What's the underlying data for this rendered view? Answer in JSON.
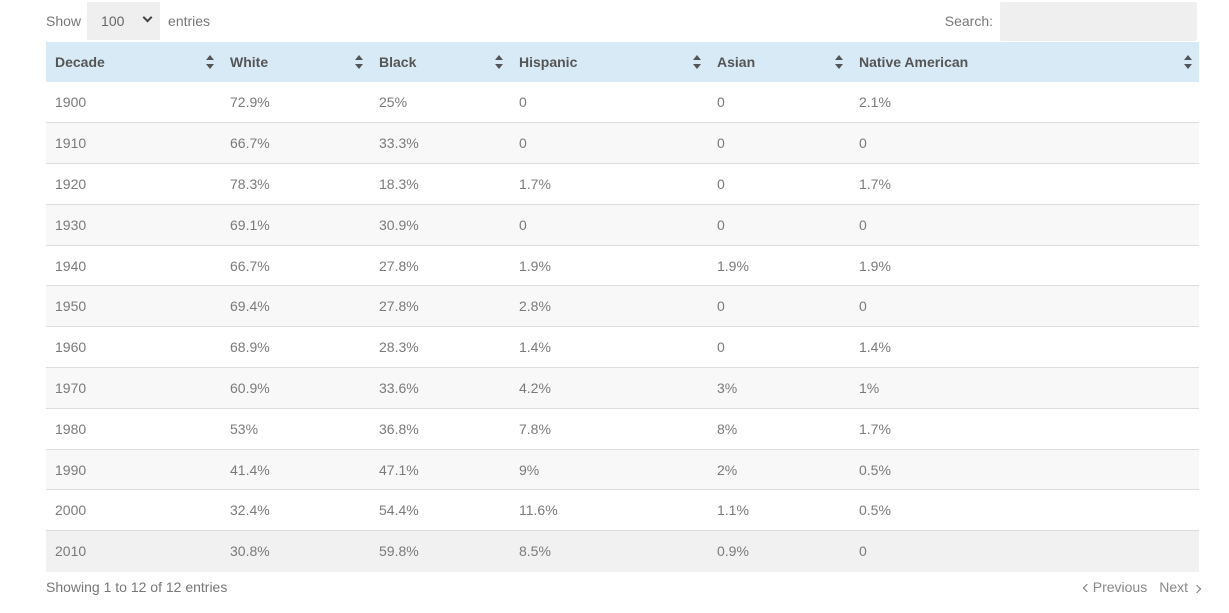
{
  "length_control": {
    "show_label": "Show",
    "selected": "100",
    "entries_label": "entries"
  },
  "search": {
    "label": "Search:",
    "value": ""
  },
  "table": {
    "columns": [
      "Decade",
      "White",
      "Black",
      "Hispanic",
      "Asian",
      "Native American"
    ],
    "rows": [
      [
        "1900",
        "72.9%",
        "25%",
        "0",
        "0",
        "2.1%"
      ],
      [
        "1910",
        "66.7%",
        "33.3%",
        "0",
        "0",
        "0"
      ],
      [
        "1920",
        "78.3%",
        "18.3%",
        "1.7%",
        "0",
        "1.7%"
      ],
      [
        "1930",
        "69.1%",
        "30.9%",
        "0",
        "0",
        "0"
      ],
      [
        "1940",
        "66.7%",
        "27.8%",
        "1.9%",
        "1.9%",
        "1.9%"
      ],
      [
        "1950",
        "69.4%",
        "27.8%",
        "2.8%",
        "0",
        "0"
      ],
      [
        "1960",
        "68.9%",
        "28.3%",
        "1.4%",
        "0",
        "1.4%"
      ],
      [
        "1970",
        "60.9%",
        "33.6%",
        "4.2%",
        "3%",
        "1%"
      ],
      [
        "1980",
        "53%",
        "36.8%",
        "7.8%",
        "8%",
        "1.7%"
      ],
      [
        "1990",
        "41.4%",
        "47.1%",
        "9%",
        "2%",
        "0.5%"
      ],
      [
        "2000",
        "32.4%",
        "54.4%",
        "11.6%",
        "1.1%",
        "0.5%"
      ],
      [
        "2010",
        "30.8%",
        "59.8%",
        "8.5%",
        "0.9%",
        "0"
      ]
    ]
  },
  "info": "Showing 1 to 12 of 12 entries",
  "pagination": {
    "previous": "Previous",
    "next": "Next"
  },
  "colors": {
    "header_bg": "#d9eaf7",
    "stripe_bg": "#f8f8f8",
    "input_bg": "#efefef"
  }
}
